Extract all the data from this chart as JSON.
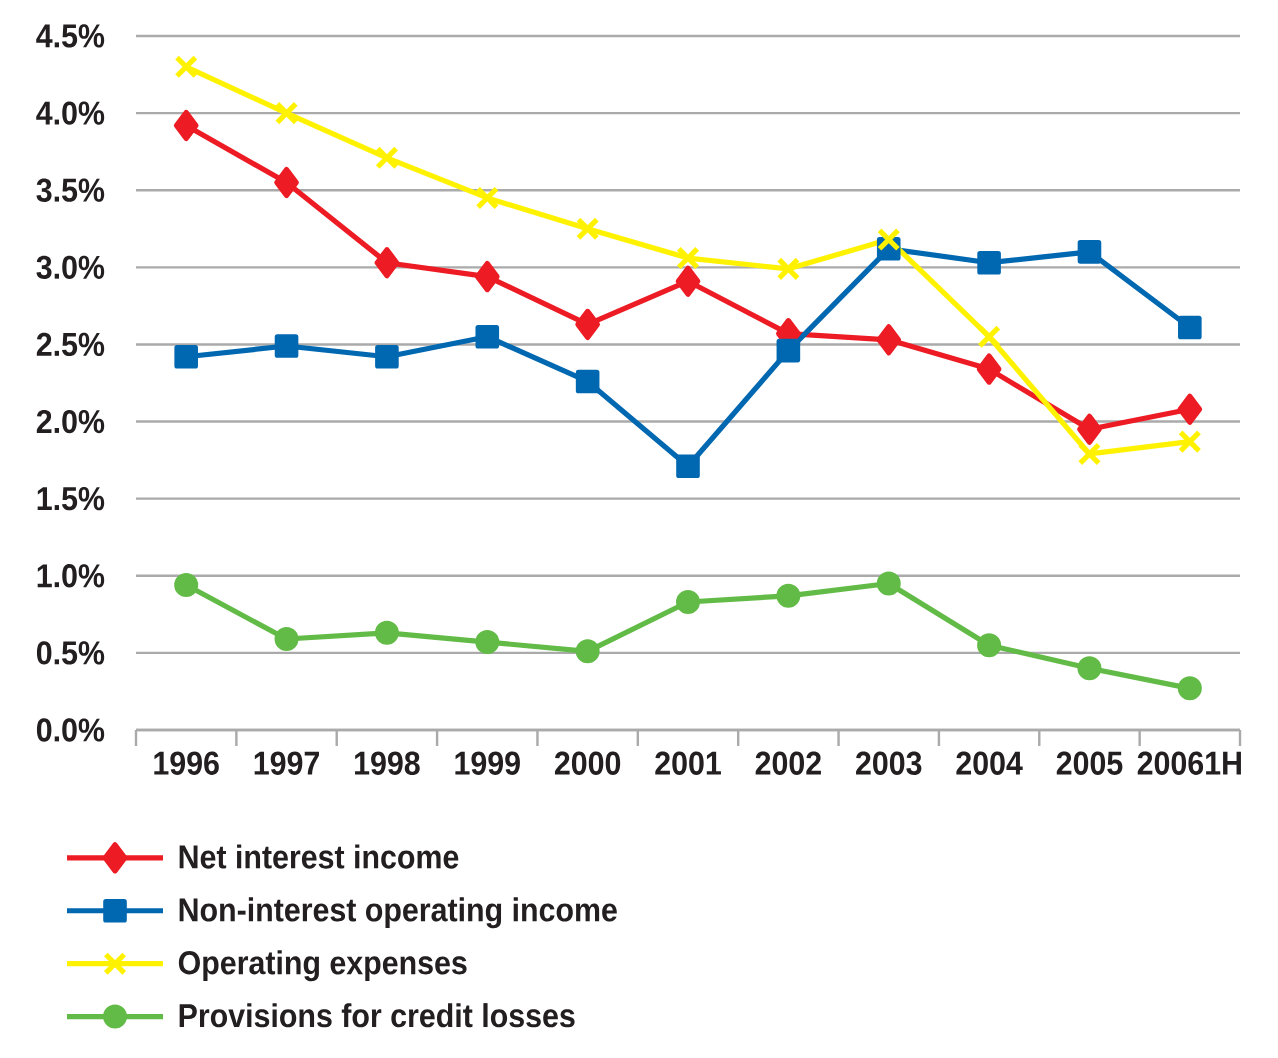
{
  "chart_data": {
    "type": "line",
    "categories": [
      "1996",
      "1997",
      "1998",
      "1999",
      "2000",
      "2001",
      "2002",
      "2003",
      "2004",
      "2005",
      "20061H"
    ],
    "series": [
      {
        "name": "Net interest income",
        "color": "#ed1c24",
        "marker": "diamond",
        "values": [
          3.92,
          3.55,
          3.03,
          2.94,
          2.63,
          2.91,
          2.57,
          2.53,
          2.34,
          1.95,
          2.08
        ]
      },
      {
        "name": "Non-interest operating income",
        "color": "#0067b1",
        "marker": "square",
        "values": [
          2.42,
          2.49,
          2.42,
          2.55,
          2.26,
          1.71,
          2.46,
          3.12,
          3.03,
          3.1,
          2.61
        ]
      },
      {
        "name": "Operating expenses",
        "color": "#fff200",
        "marker": "cross",
        "values": [
          4.3,
          4.0,
          3.71,
          3.45,
          3.25,
          3.06,
          2.99,
          3.18,
          2.55,
          1.79,
          1.87
        ]
      },
      {
        "name": "Provisions for credit losses",
        "color": "#62bb46",
        "marker": "circle",
        "values": [
          0.94,
          0.59,
          0.63,
          0.57,
          0.51,
          0.83,
          0.87,
          0.95,
          0.55,
          0.4,
          0.27
        ]
      }
    ],
    "ylim": [
      0,
      4.5
    ],
    "yticks": [
      {
        "value": 0,
        "label": "0.0%"
      },
      {
        "value": 0.5,
        "label": "0.5%"
      },
      {
        "value": 1,
        "label": "1.0%"
      },
      {
        "value": 1.5,
        "label": "1.5%"
      },
      {
        "value": 2,
        "label": "2.0%"
      },
      {
        "value": 2.5,
        "label": "2.5%"
      },
      {
        "value": 3,
        "label": "3.0%"
      },
      {
        "value": 3.5,
        "label": "3.5%"
      },
      {
        "value": 4,
        "label": "4.0%"
      },
      {
        "value": 4.5,
        "label": "4.5%"
      }
    ],
    "grid": "y",
    "legend": "bottom",
    "line_style": "solid"
  }
}
